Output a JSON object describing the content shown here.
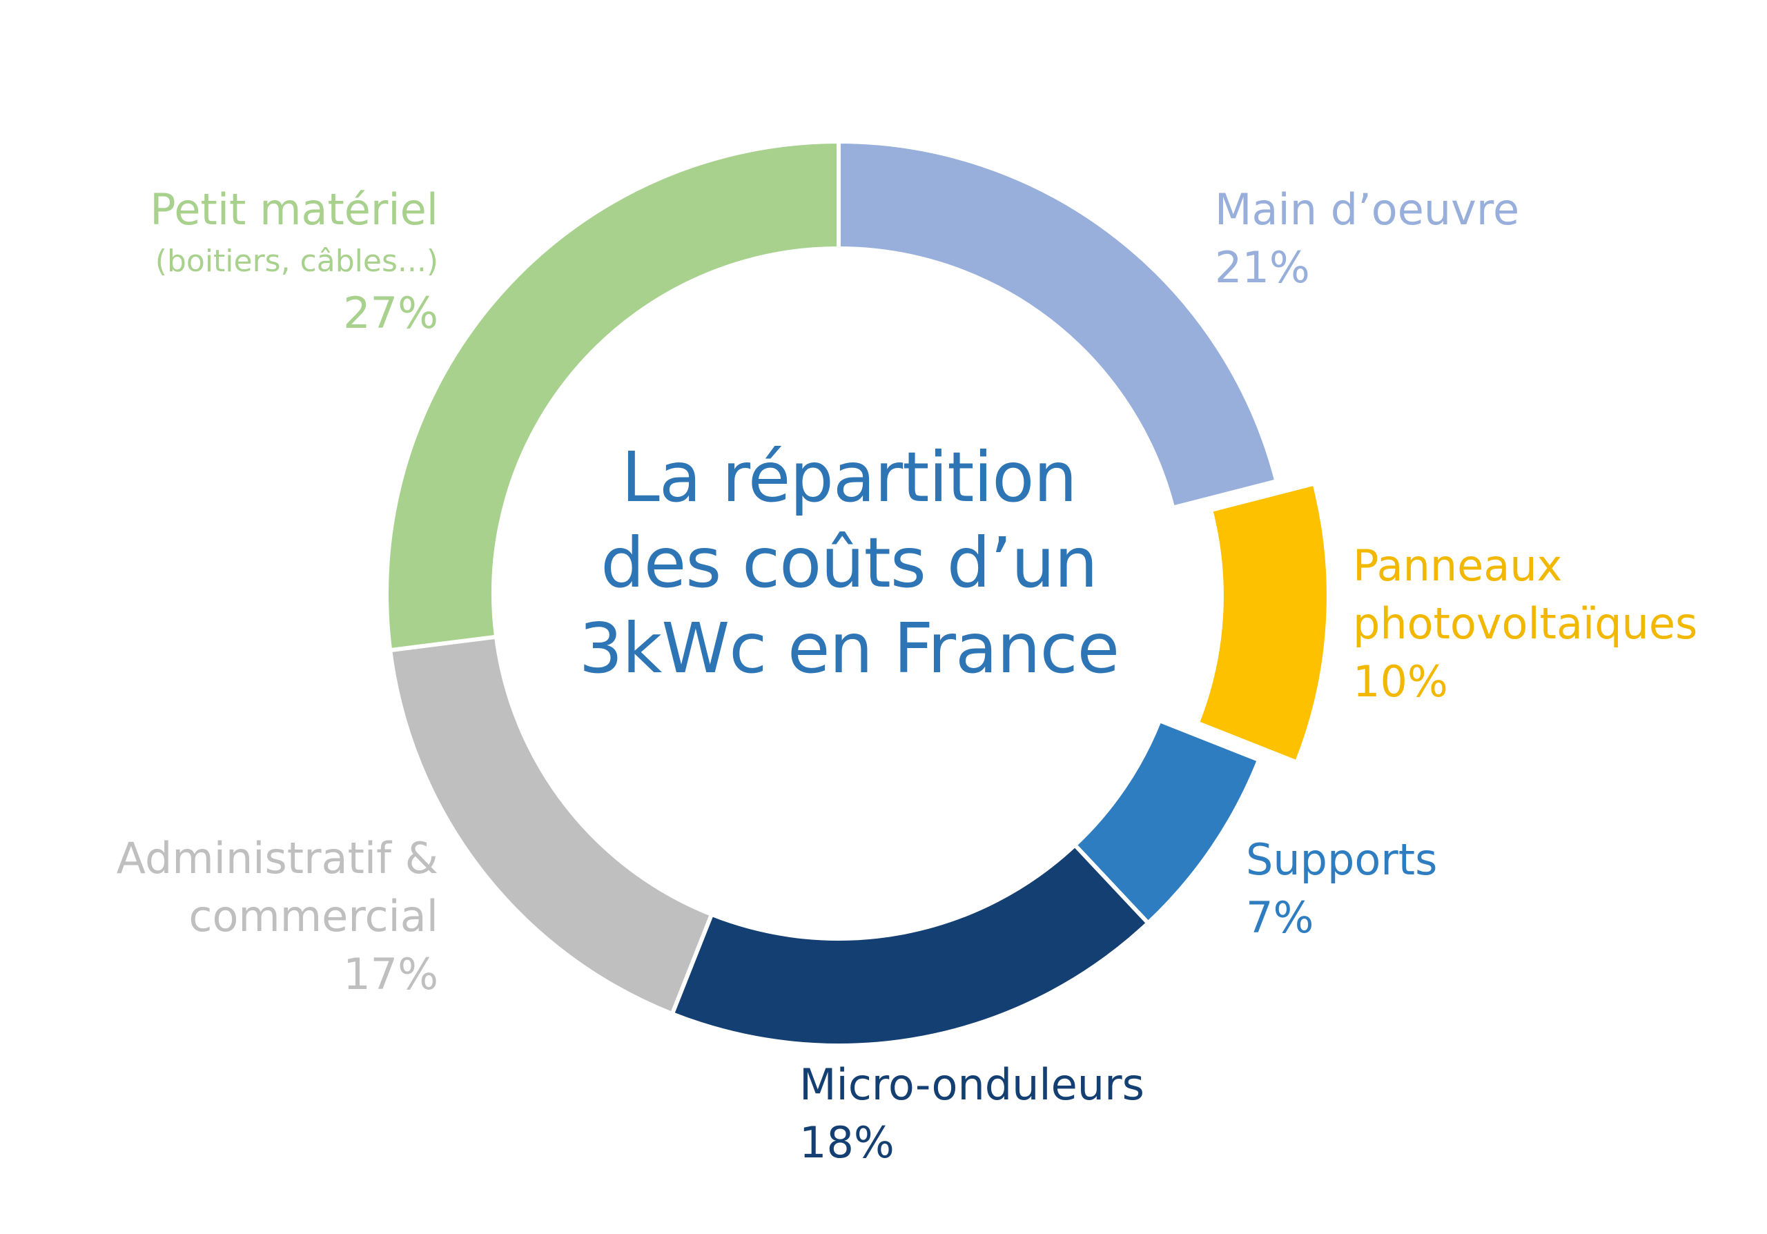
{
  "chart_data": {
    "type": "pie",
    "title_lines": [
      "La répartition",
      "des coûts d’un",
      "3kWc en France"
    ],
    "slices": [
      {
        "id": "main-oeuvre",
        "label_lines": [
          "Main d’oeuvre"
        ],
        "sublabel": "",
        "pct_label": "21%",
        "value": 21,
        "color": "#98afdc",
        "exploded": false
      },
      {
        "id": "panneaux",
        "label_lines": [
          "Panneaux",
          "photovoltaïques"
        ],
        "sublabel": "",
        "pct_label": "10%",
        "value": 10,
        "color": "#fdc100",
        "exploded": true
      },
      {
        "id": "supports",
        "label_lines": [
          "Supports"
        ],
        "sublabel": "",
        "pct_label": "7%",
        "value": 7,
        "color": "#2f7dc1",
        "exploded": false
      },
      {
        "id": "micro-onduleurs",
        "label_lines": [
          "Micro-onduleurs"
        ],
        "sublabel": "",
        "pct_label": "18%",
        "value": 18,
        "color": "#143f72",
        "exploded": false
      },
      {
        "id": "administratif",
        "label_lines": [
          "Administratif &",
          "commercial"
        ],
        "sublabel": "",
        "pct_label": "17%",
        "value": 17,
        "color": "#bfbfbf",
        "exploded": false
      },
      {
        "id": "petit-materiel",
        "label_lines": [
          "Petit matériel"
        ],
        "sublabel": "(boitiers, câbles...)",
        "pct_label": "27%",
        "value": 27,
        "color": "#a9d18e",
        "exploded": false
      }
    ]
  }
}
